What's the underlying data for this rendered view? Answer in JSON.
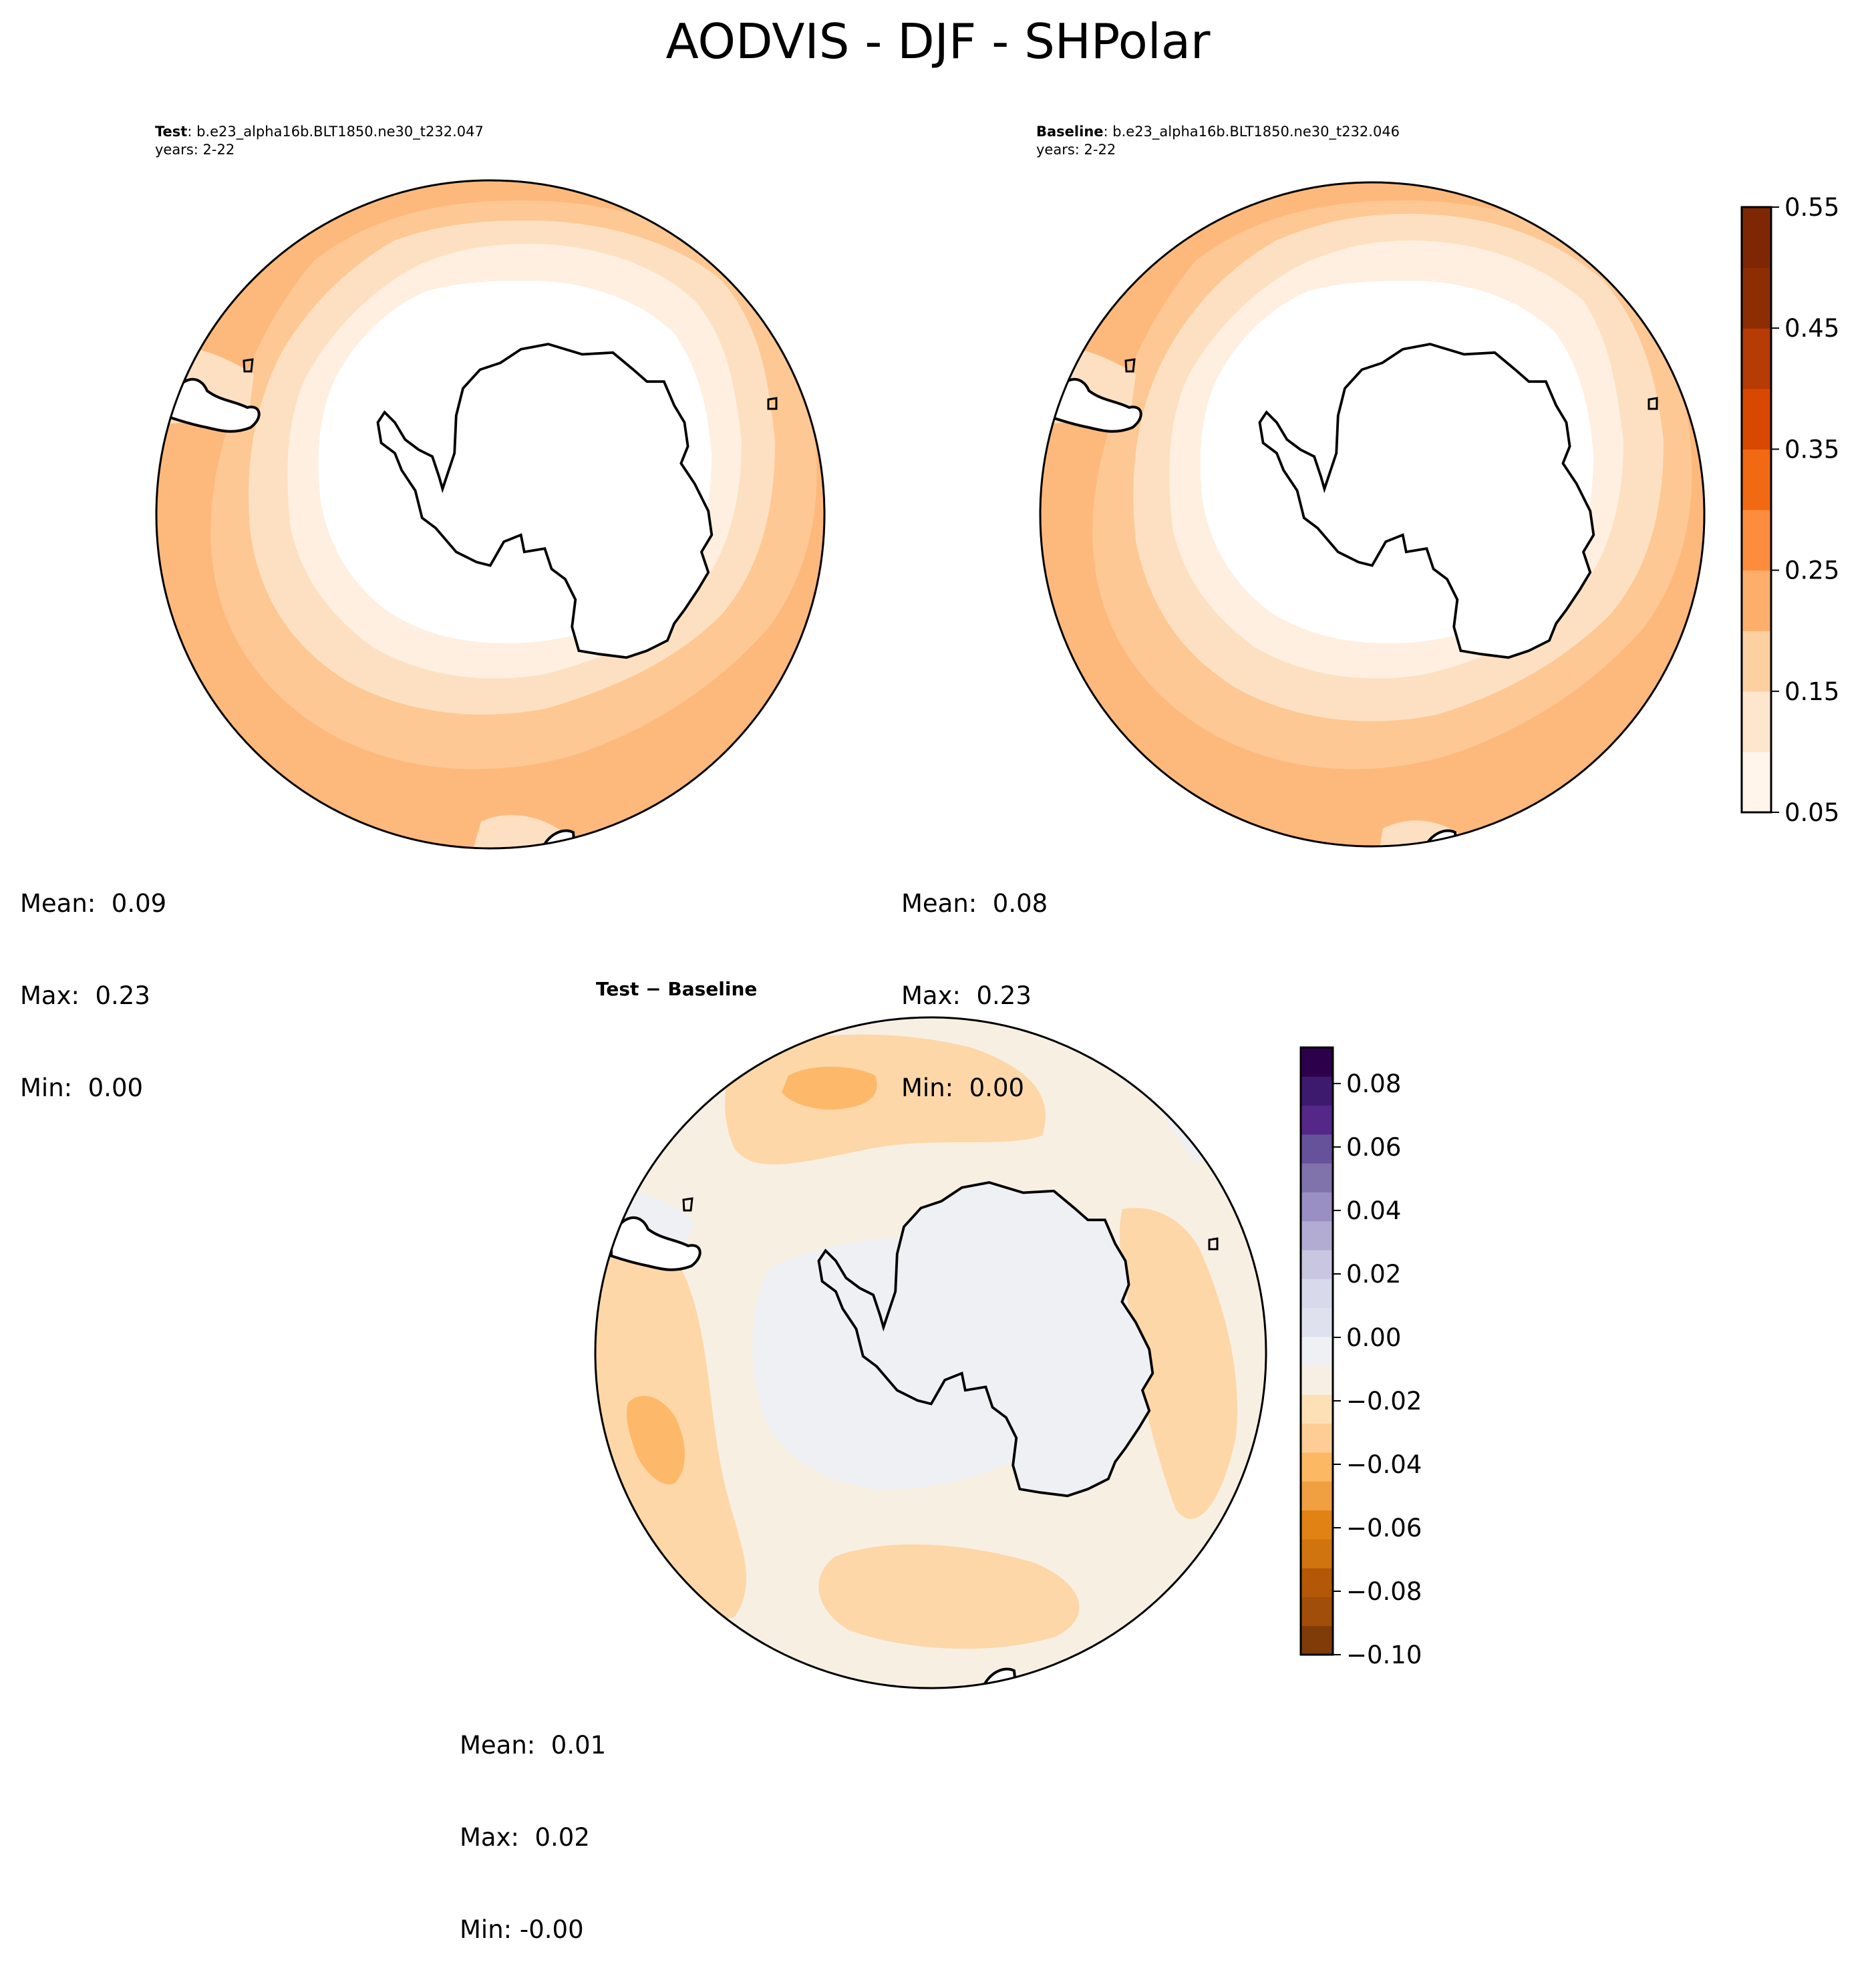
{
  "title": "AODVIS - DJF - SHPolar",
  "panels": {
    "test": {
      "label": "Test",
      "case": ": b.e23_alpha16b.BLT1850.ne30_t232.047",
      "years": "years: 2-22",
      "stats": {
        "mean": "Mean:  0.09",
        "max": "Max:  0.23",
        "min": "Min:  0.00"
      }
    },
    "baseline": {
      "label": "Baseline",
      "case": ": b.e23_alpha16b.BLT1850.ne30_t232.046",
      "years": "years: 2-22",
      "stats": {
        "mean": "Mean:  0.08",
        "max": "Max:  0.23",
        "min": "Min:  0.00"
      }
    },
    "diff": {
      "label": "Test − Baseline",
      "stats": {
        "mean": "Mean:  0.01",
        "max": "Max:  0.02",
        "min": "Min: -0.00"
      }
    }
  },
  "colorbar_top": {
    "ticks": [
      "0.05",
      "0.15",
      "0.25",
      "0.35",
      "0.45",
      "0.55"
    ],
    "colors": [
      "#fff5eb",
      "#fee6ce",
      "#fdd0a2",
      "#fdae6b",
      "#fd8d3c",
      "#f16913",
      "#d94801",
      "#b63b04",
      "#8c2d04",
      "#7f2704"
    ]
  },
  "colorbar_diff": {
    "ticks": [
      "0.08",
      "0.06",
      "0.04",
      "0.02",
      "0.00",
      "−0.02",
      "−0.04",
      "−0.06",
      "−0.08",
      "−0.10"
    ],
    "colors": [
      "#7f3b08",
      "#a04e09",
      "#b35806",
      "#d07410",
      "#e08214",
      "#f0a040",
      "#fdb863",
      "#fdcd95",
      "#fee0b6",
      "#f7efe4",
      "#eff0f4",
      "#e0e1ee",
      "#d8daeb",
      "#c8c6e1",
      "#b2abd2",
      "#9a8fc2",
      "#8073ac",
      "#66519b",
      "#542788",
      "#3e1a6f",
      "#2d004b"
    ]
  },
  "colors": {
    "test_rings": [
      "#fdb97c",
      "#fdc894",
      "#fde0c1",
      "#feefe0",
      "#ffffff"
    ],
    "diff_background": "#f8efe3",
    "diff_warm": "#fdd7a8",
    "diff_warmer": "#fdb86a",
    "diff_land": "#eff0f4"
  }
}
